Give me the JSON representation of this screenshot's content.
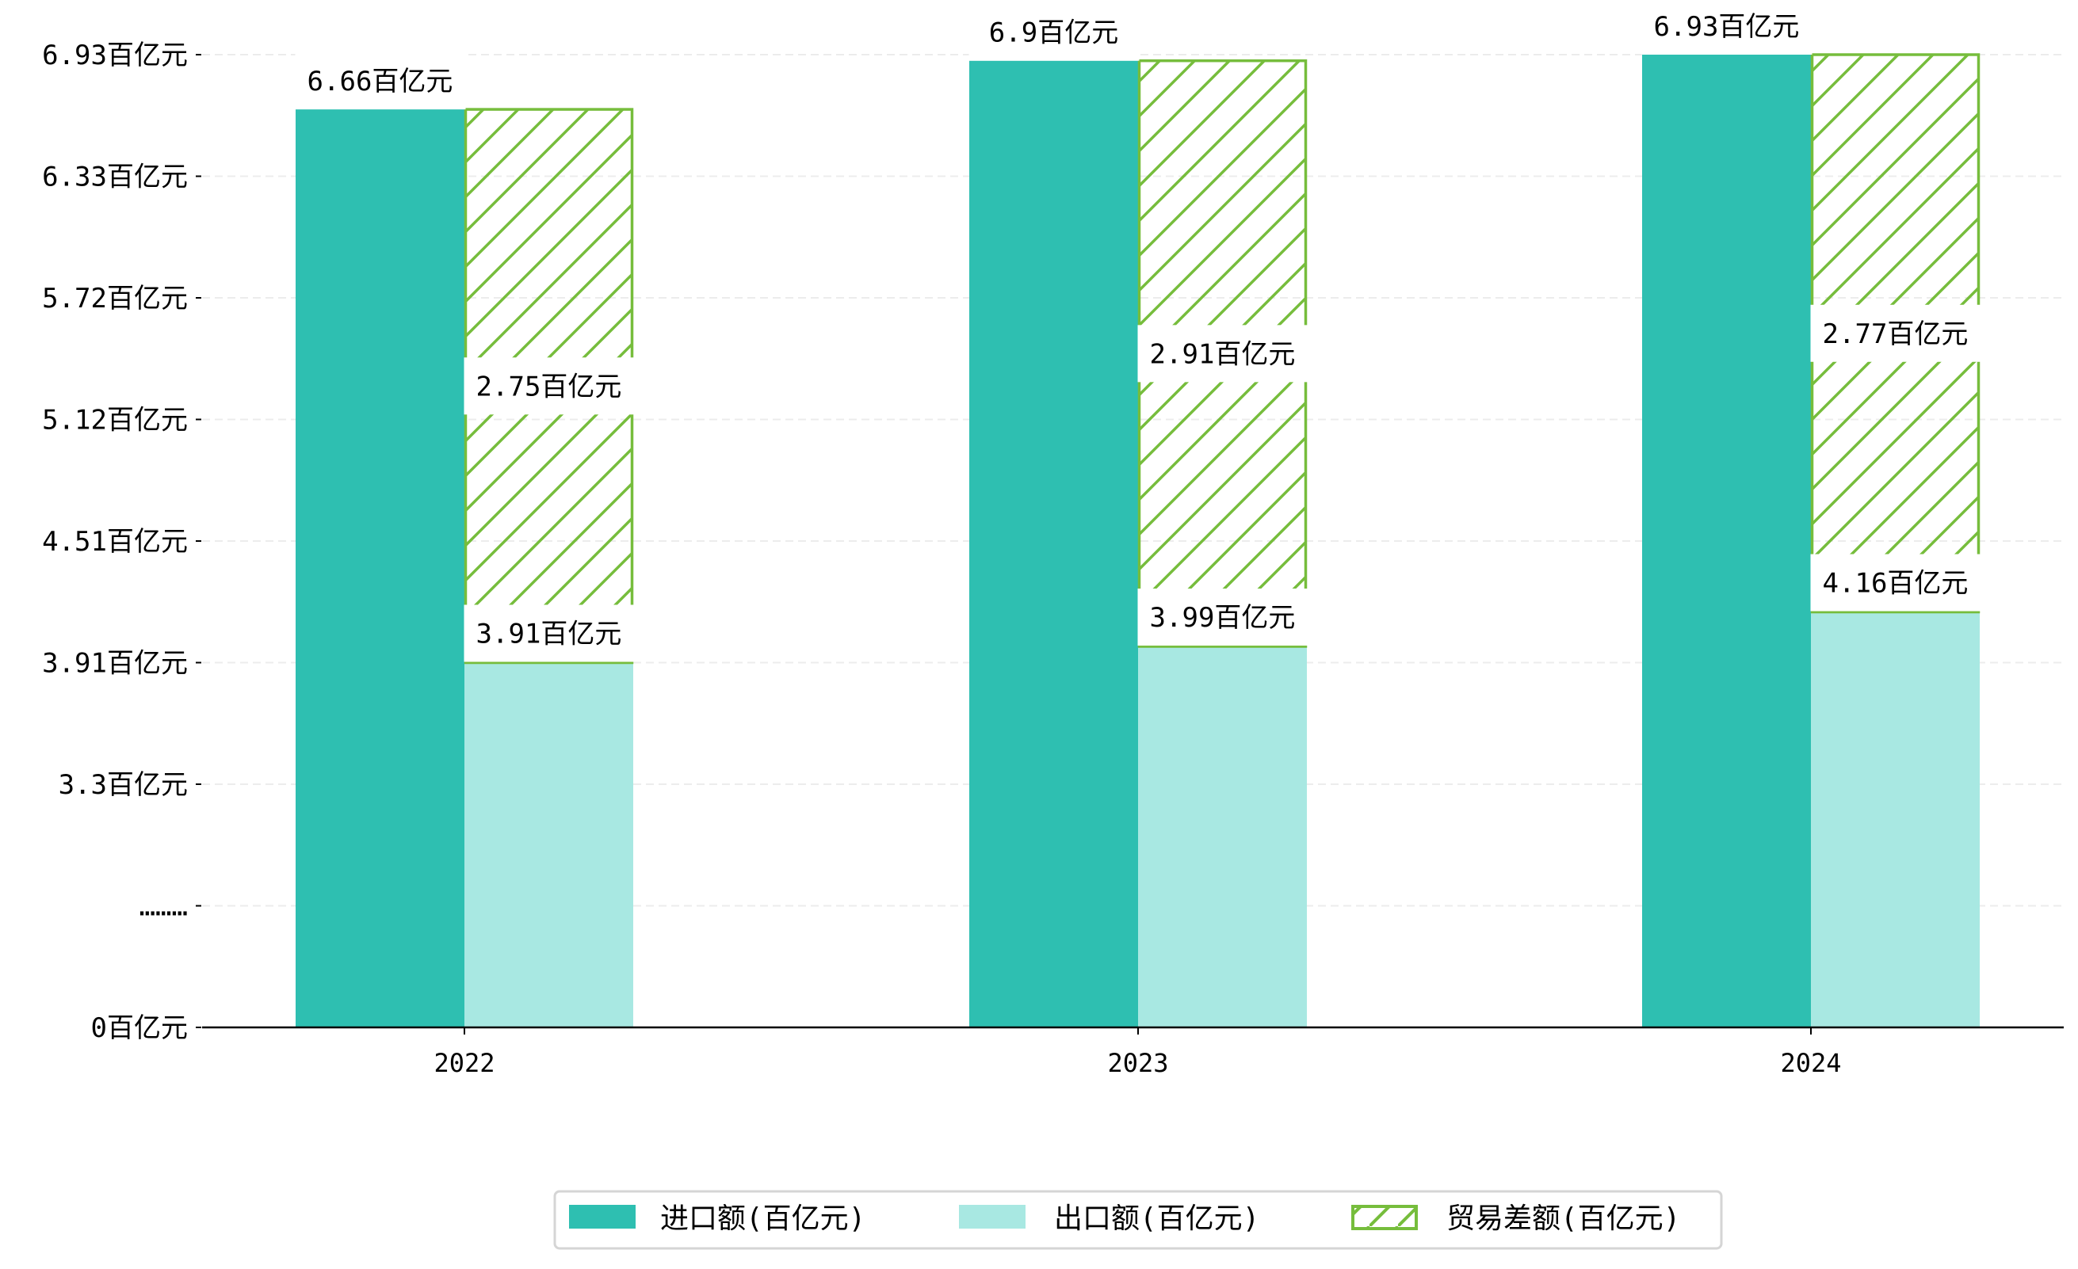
{
  "chart_data": {
    "type": "bar",
    "title": "",
    "xlabel": "",
    "ylabel": "",
    "categories": [
      "2022",
      "2023",
      "2024"
    ],
    "unit": "百亿元",
    "y_ticks": [
      {
        "label": "0百亿元",
        "value": 0
      },
      {
        "label": "………",
        "value": null
      },
      {
        "label": "3.3百亿元",
        "value": 3.3
      },
      {
        "label": "3.91百亿元",
        "value": 3.91
      },
      {
        "label": "4.51百亿元",
        "value": 4.51
      },
      {
        "label": "5.12百亿元",
        "value": 5.12
      },
      {
        "label": "5.72百亿元",
        "value": 5.72
      },
      {
        "label": "6.33百亿元",
        "value": 6.33
      },
      {
        "label": "6.93百亿元",
        "value": 6.93
      }
    ],
    "series": [
      {
        "name": "进口额(百亿元)",
        "color": "#2ebfb1",
        "values": [
          6.66,
          6.9,
          6.93
        ],
        "labels": [
          "6.66百亿元",
          "6.9百亿元",
          "6.93百亿元"
        ]
      },
      {
        "name": "出口额(百亿元)",
        "color": "#a8e8e2",
        "values": [
          3.91,
          3.99,
          4.16
        ],
        "labels": [
          "3.91百亿元",
          "3.99百亿元",
          "4.16百亿元"
        ]
      },
      {
        "name": "贸易差额(百亿元)",
        "color": "#76bd3c",
        "hatch": "/",
        "values": [
          2.75,
          2.91,
          2.77
        ],
        "labels": [
          "2.75百亿元",
          "2.91百亿元",
          "2.77百亿元"
        ]
      }
    ],
    "legend_position": "bottom-center",
    "grid": "horizontal dashed"
  }
}
